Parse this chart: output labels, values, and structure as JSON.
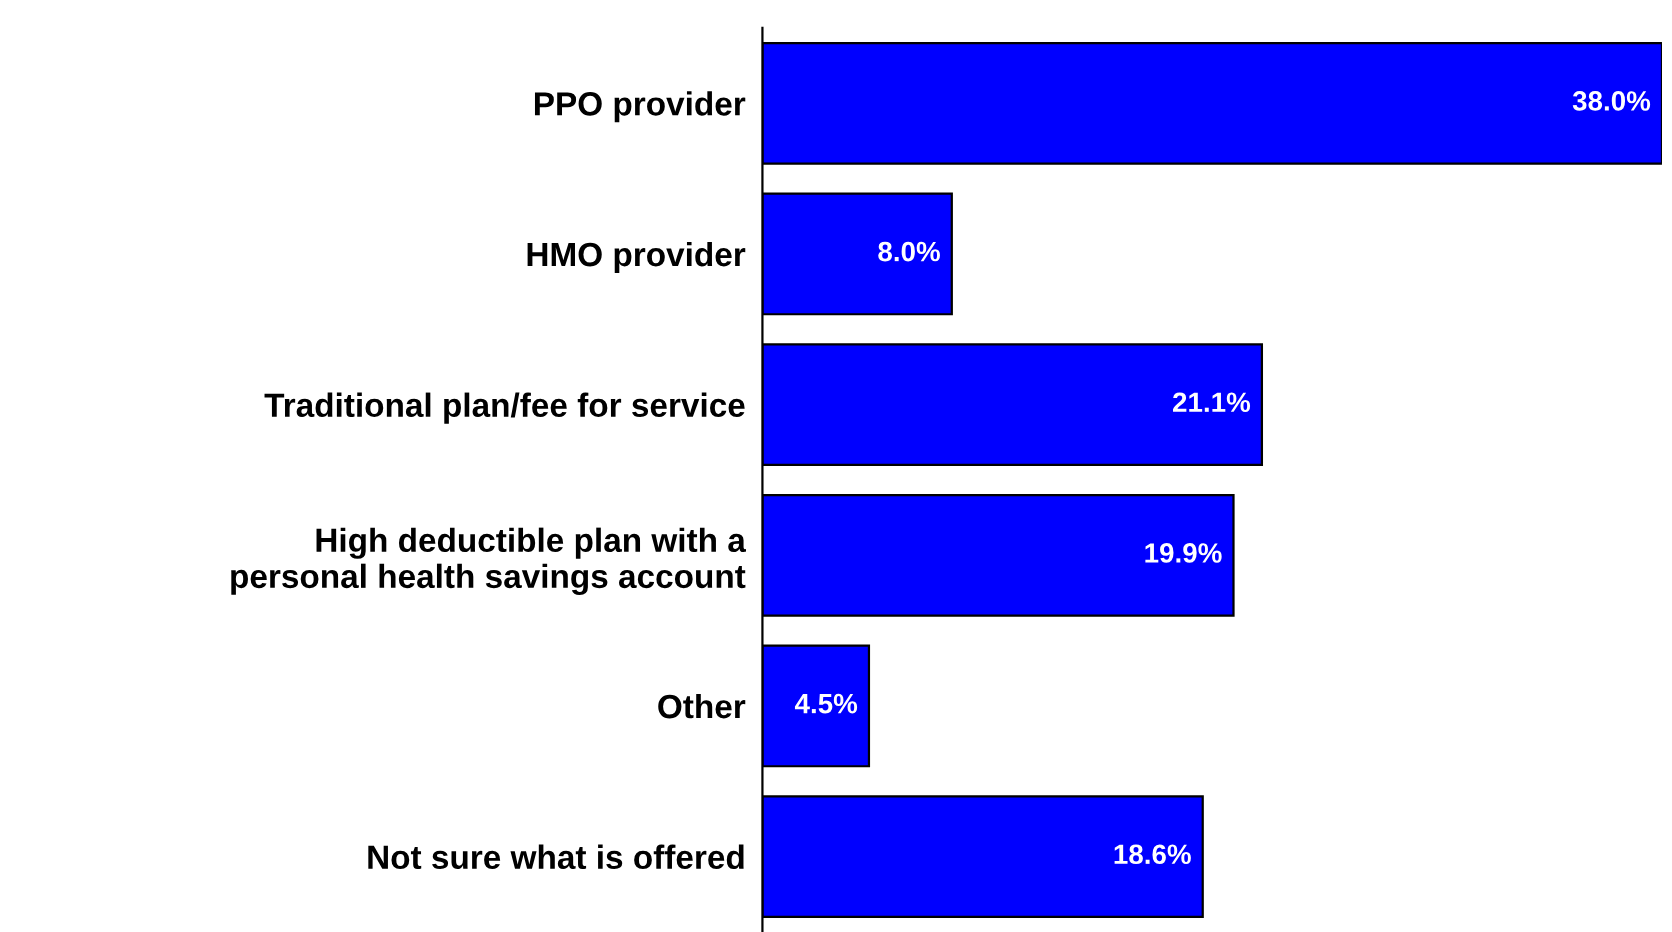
{
  "chart_data": {
    "type": "bar",
    "orientation": "horizontal",
    "categories": [
      "PPO provider",
      "HMO provider",
      "Traditional plan/fee for service",
      "High deductible plan with a\npersonal health savings account",
      "Other",
      "Not sure what is offered"
    ],
    "values": [
      38.0,
      8.0,
      21.1,
      19.9,
      4.5,
      18.6
    ],
    "value_labels": [
      "38.0%",
      "8.0%",
      "21.1%",
      "19.9%",
      "4.5%",
      "18.6%"
    ],
    "color": "#0000ff",
    "xlim": [
      0,
      38
    ],
    "grid": false,
    "legend": false,
    "tick_labels": "y"
  }
}
